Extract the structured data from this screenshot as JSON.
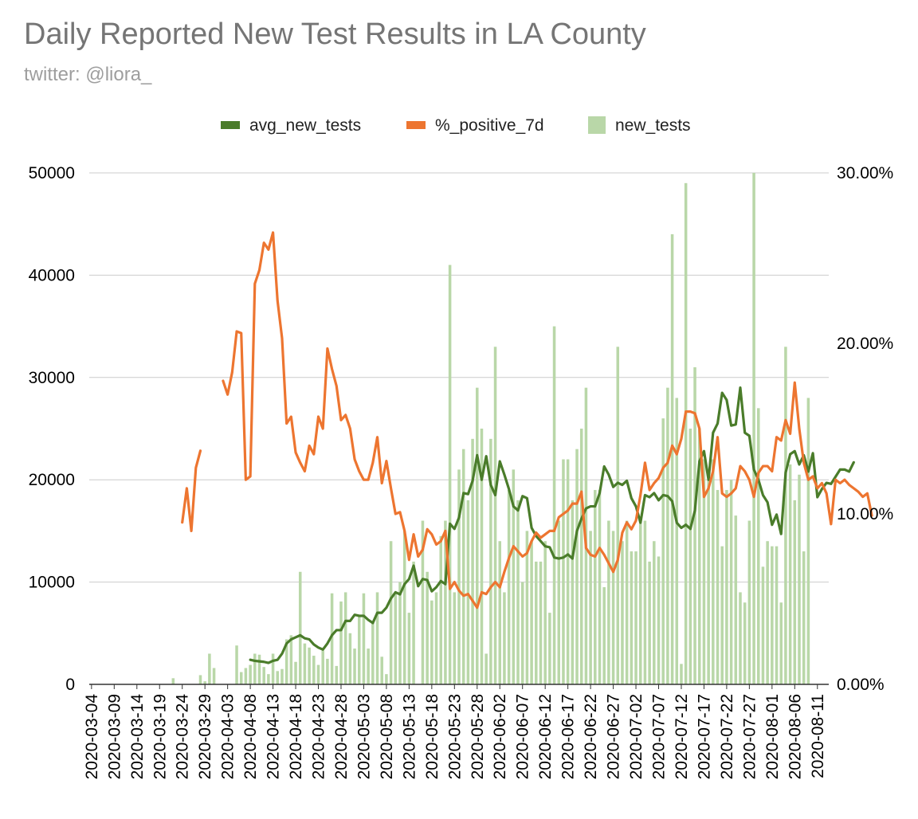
{
  "chart_data": {
    "type": "bar",
    "title": "Daily Reported New Test Results in LA County",
    "subtitle": "twitter: @liora_",
    "legend": [
      "avg_new_tests",
      "%_positive_7d",
      "new_tests"
    ],
    "colors": {
      "avg_new_tests": "#4a7c2a",
      "%_positive_7d": "#ed7530",
      "new_tests": "#b9d7a8",
      "grid": "#cccccc"
    },
    "left_axis": {
      "ylim": [
        0,
        50000
      ],
      "ticks": [
        "0",
        "10000",
        "20000",
        "30000",
        "40000",
        "50000"
      ]
    },
    "right_axis": {
      "ylim": [
        0,
        0.3
      ],
      "ticks": [
        "0.00%",
        "10.00%",
        "20.00%",
        "30.00%"
      ]
    },
    "x_tick_labels": [
      "2020-03-04",
      "2020-03-09",
      "2020-03-14",
      "2020-03-19",
      "2020-03-24",
      "2020-03-29",
      "2020-04-03",
      "2020-04-08",
      "2020-04-13",
      "2020-04-18",
      "2020-04-23",
      "2020-04-28",
      "2020-05-03",
      "2020-05-08",
      "2020-05-13",
      "2020-05-18",
      "2020-05-23",
      "2020-05-28",
      "2020-06-02",
      "2020-06-07",
      "2020-06-12",
      "2020-06-17",
      "2020-06-22",
      "2020-06-27",
      "2020-07-02",
      "2020-07-07",
      "2020-07-12",
      "2020-07-17",
      "2020-07-22",
      "2020-07-27",
      "2020-08-01",
      "2020-08-06",
      "2020-08-11"
    ],
    "x_tick_day_offsets": [
      0,
      5,
      10,
      15,
      20,
      25,
      30,
      35,
      40,
      45,
      50,
      55,
      60,
      65,
      70,
      75,
      80,
      85,
      90,
      95,
      100,
      105,
      110,
      115,
      120,
      125,
      130,
      135,
      140,
      145,
      150,
      155,
      160
    ],
    "num_days": 163,
    "series": [
      {
        "name": "new_tests",
        "type": "bar",
        "start_day": 0,
        "values": [
          0,
          0,
          0,
          0,
          0,
          0,
          0,
          0,
          0,
          0,
          0,
          0,
          0,
          0,
          0,
          0,
          0,
          0,
          600,
          0,
          0,
          0,
          0,
          0,
          900,
          300,
          3000,
          1600,
          0,
          0,
          0,
          0,
          3800,
          1200,
          1600,
          1900,
          3000,
          2900,
          1700,
          1000,
          3000,
          1300,
          1500,
          4400,
          4800,
          2200,
          11000,
          4000,
          3600,
          2800,
          1900,
          3300,
          2500,
          8900,
          1800,
          8100,
          9000,
          5000,
          3500,
          6800,
          8900,
          3500,
          6000,
          9000,
          2700,
          1000,
          14000,
          9000,
          10000,
          15000,
          7000,
          12000,
          0,
          16000,
          11000,
          8200,
          9000,
          14500,
          16000,
          41000,
          9000,
          21000,
          23000,
          18000,
          24000,
          29000,
          25000,
          3000,
          24000,
          33000,
          14000,
          9000,
          19000,
          21000,
          18000,
          10000,
          15000,
          14000,
          12000,
          12000,
          14000,
          7000,
          35000,
          16000,
          22000,
          22000,
          18000,
          23000,
          25000,
          29000,
          15000,
          19000,
          19000,
          9500,
          16000,
          15000,
          33000,
          14000,
          16000,
          13000,
          13000,
          16000,
          16000,
          12000,
          14000,
          12500,
          26000,
          29000,
          44000,
          28000,
          2000,
          49000,
          25000,
          31000,
          25000,
          22000,
          20000,
          22000,
          19000,
          13500,
          19000,
          20000,
          16500,
          9000,
          8000,
          16000,
          50000,
          27000,
          11500,
          14000,
          13500,
          13500,
          8000,
          33000,
          21500,
          18000,
          20500,
          13000,
          28000
        ]
      },
      {
        "name": "avg_new_tests",
        "type": "line",
        "start_day": 35,
        "values": [
          2400,
          2300,
          2250,
          2200,
          2100,
          2300,
          2400,
          3000,
          4000,
          4400,
          4600,
          4800,
          4500,
          4400,
          3900,
          3600,
          3400,
          4000,
          4800,
          5300,
          5300,
          6200,
          6200,
          6800,
          6700,
          6700,
          6300,
          6000,
          7000,
          7000,
          7500,
          8400,
          9000,
          8800,
          9800,
          10300,
          11600,
          9600,
          10300,
          10200,
          9100,
          9500,
          10100,
          9800,
          15700,
          15200,
          16300,
          18700,
          18600,
          19900,
          22400,
          20000,
          22300,
          19500,
          18500,
          21800,
          20500,
          19100,
          17400,
          17000,
          18400,
          18200,
          15300,
          14500,
          14000,
          13500,
          13400,
          12400,
          12300,
          12400,
          12700,
          12300,
          15000,
          16200,
          17200,
          17400,
          17400,
          18700,
          21300,
          20500,
          19300,
          19700,
          19500,
          19900,
          18200,
          17400,
          15800,
          18500,
          18300,
          18700,
          18000,
          18500,
          18400,
          17900,
          15800,
          15300,
          15600,
          15200,
          17000,
          21800,
          22800,
          20000,
          24600,
          25500,
          28500,
          27800,
          25300,
          25400,
          29000,
          24600,
          24300,
          21000,
          20000,
          18500,
          17800,
          15600,
          16600,
          14700,
          20700,
          22500,
          22800,
          21500,
          22400,
          20800,
          22600,
          18300,
          19100,
          19700,
          19600,
          20300,
          21000,
          21000,
          20800,
          21700
        ]
      },
      {
        "name": "%_positive_7d",
        "type": "line",
        "axis": "right",
        "start_day": 20,
        "values": [
          0.095,
          0.115,
          0.09,
          0.127,
          0.137,
          null,
          null,
          null,
          null,
          0.178,
          0.17,
          0.183,
          0.207,
          0.206,
          0.12,
          0.122,
          0.235,
          0.243,
          0.259,
          0.255,
          0.265,
          0.225,
          0.203,
          0.153,
          0.157,
          0.136,
          0.13,
          0.125,
          0.14,
          0.135,
          0.157,
          0.15,
          0.197,
          0.185,
          0.175,
          0.155,
          0.158,
          0.15,
          0.132,
          0.125,
          0.12,
          0.12,
          0.13,
          0.145,
          0.118,
          0.131,
          0.115,
          0.1,
          0.101,
          0.09,
          0.073,
          0.088,
          0.075,
          0.079,
          0.091,
          0.088,
          0.082,
          0.084,
          0.09,
          0.056,
          0.06,
          0.055,
          0.052,
          0.053,
          0.049,
          0.045,
          0.054,
          0.053,
          0.057,
          0.06,
          0.057,
          0.066,
          0.074,
          0.081,
          0.078,
          0.075,
          0.077,
          0.084,
          0.089,
          0.086,
          0.088,
          0.09,
          0.09,
          0.098,
          0.1,
          0.102,
          0.106,
          0.106,
          0.113,
          0.08,
          0.076,
          0.075,
          0.08,
          0.076,
          0.071,
          0.066,
          0.073,
          0.089,
          0.095,
          0.091,
          0.096,
          0.111,
          0.13,
          0.114,
          0.118,
          0.121,
          0.127,
          0.13,
          0.14,
          0.135,
          0.144,
          0.16,
          0.16,
          0.159,
          0.15,
          0.11,
          0.115,
          0.125,
          0.145,
          0.112,
          0.11,
          0.112,
          0.115,
          0.128,
          0.125,
          0.12,
          0.11,
          0.124,
          0.128,
          0.128,
          0.125,
          0.145,
          0.143,
          0.155,
          0.147,
          0.177,
          0.15,
          0.13,
          0.12,
          0.122,
          0.115,
          0.118,
          0.112,
          0.094,
          0.12,
          0.118,
          0.12,
          0.117,
          0.115,
          0.113,
          0.11,
          0.112,
          0.099
        ]
      }
    ]
  }
}
